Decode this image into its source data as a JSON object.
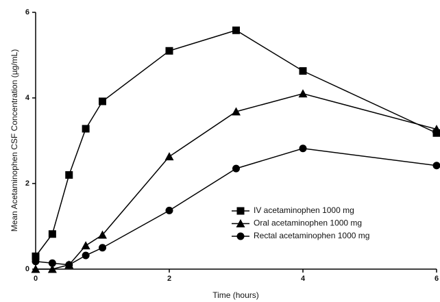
{
  "chart_data": {
    "type": "line",
    "x_label": "Time (hours)",
    "y_label": "Mean Acetaminophen CSF Concentration (µg/mL)",
    "x": [
      0,
      0.25,
      0.5,
      0.75,
      1,
      2,
      3,
      4,
      6
    ],
    "series": [
      {
        "name": "IV acetaminophen 1000 mg",
        "color": "#000000",
        "marker": "square",
        "values": [
          0.3,
          0.82,
          2.2,
          3.28,
          3.92,
          5.1,
          5.58,
          4.63,
          3.18
        ]
      },
      {
        "name": "Oral acetaminophen 1000 mg",
        "color": "#000000",
        "marker": "triangle",
        "values": [
          0,
          0,
          0.1,
          0.55,
          0.8,
          2.63,
          3.68,
          4.1,
          3.27
        ]
      },
      {
        "name": "Rectal acetaminophen 1000 mg",
        "color": "#000000",
        "marker": "circle",
        "values": [
          0.18,
          0.14,
          0.1,
          0.32,
          0.5,
          1.37,
          2.35,
          2.82,
          2.42
        ]
      }
    ],
    "xlim": [
      0,
      6
    ],
    "xticks": [
      0,
      2,
      4,
      6
    ],
    "ylim": [
      0,
      6
    ],
    "yticks": [
      0,
      2,
      4,
      6
    ],
    "grid": false,
    "legend": "right"
  }
}
